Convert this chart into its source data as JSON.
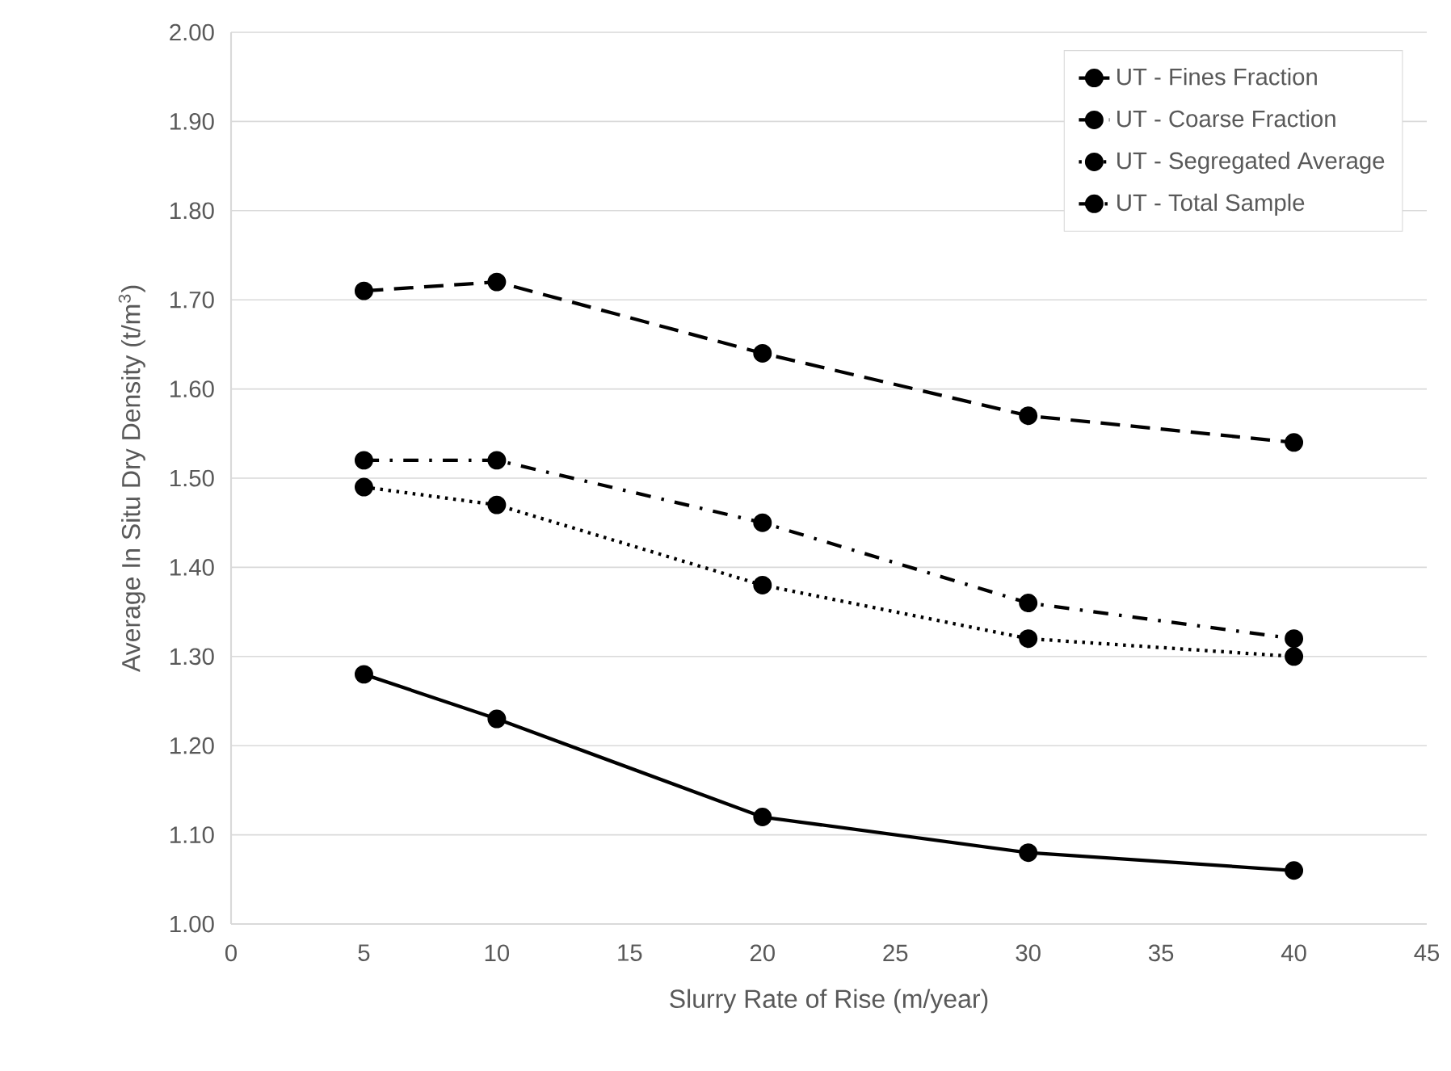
{
  "chart_data": {
    "type": "line",
    "xlabel": "Slurry Rate of Rise (m/year)",
    "ylabel": "Average In Situ Dry Density (t/m$^{3}$)",
    "x": [
      5,
      10,
      20,
      30,
      40
    ],
    "series": [
      {
        "name": "UT - Fines Fraction",
        "color": "#000000",
        "line_style": "solid",
        "values": [
          1.28,
          1.23,
          1.12,
          1.08,
          1.06
        ]
      },
      {
        "name": "UT - Coarse Fraction",
        "color": "#000000",
        "line_style": "dashed",
        "values": [
          1.71,
          1.72,
          1.64,
          1.57,
          1.54
        ]
      },
      {
        "name": "UT - Segregated Average",
        "color": "#000000",
        "line_style": "dotted",
        "values": [
          1.49,
          1.47,
          1.38,
          1.32,
          1.3
        ]
      },
      {
        "name": "UT - Total Sample",
        "color": "#000000",
        "line_style": "dashdot",
        "values": [
          1.52,
          1.52,
          1.45,
          1.36,
          1.32
        ]
      }
    ],
    "xlim": [
      0,
      45
    ],
    "xticks": [
      0,
      5,
      10,
      15,
      20,
      25,
      30,
      35,
      40,
      45
    ],
    "ylim": [
      1.0,
      2.0
    ],
    "yticks": [
      {
        "value": 1.0,
        "label": "1.00"
      },
      {
        "value": 1.1,
        "label": "1.10"
      },
      {
        "value": 1.2,
        "label": "1.20"
      },
      {
        "value": 1.3,
        "label": "1.30"
      },
      {
        "value": 1.4,
        "label": "1.40"
      },
      {
        "value": 1.5,
        "label": "1.50"
      },
      {
        "value": 1.6,
        "label": "1.60"
      },
      {
        "value": 1.7,
        "label": "1.70"
      },
      {
        "value": 1.8,
        "label": "1.80"
      },
      {
        "value": 1.9,
        "label": "1.90"
      },
      {
        "value": 2.0,
        "label": "2.00"
      }
    ],
    "grid": "y",
    "legend": "top right",
    "marker": "circle"
  }
}
